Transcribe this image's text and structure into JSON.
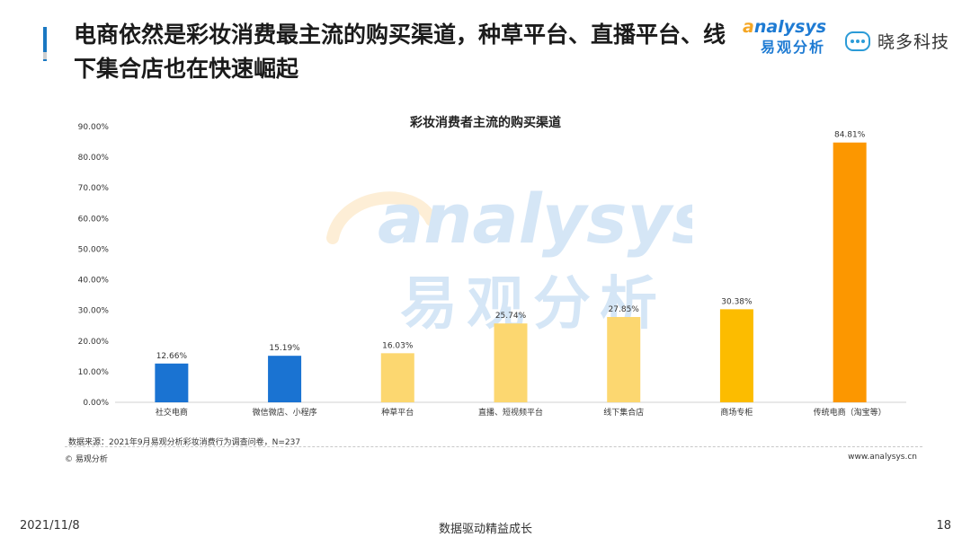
{
  "header": {
    "title": "电商依然是彩妆消费最主流的购买渠道，种草平台、直播平台、线下集合店也在快速崛起"
  },
  "logos": {
    "analysys_en": "nalysys",
    "analysys_a": "a",
    "analysys_cn": "易观分析",
    "xiaoduo": "晓多科技",
    "robot_icon": "robot-face-icon"
  },
  "watermark": {
    "en": "analysys",
    "cn": "易观分析"
  },
  "chart_data": {
    "type": "bar",
    "title": "彩妆消费者主流的购买渠道",
    "xlabel": "",
    "ylabel": "",
    "ylim": [
      0,
      90
    ],
    "yticks": [
      "0.00%",
      "10.00%",
      "20.00%",
      "30.00%",
      "40.00%",
      "50.00%",
      "60.00%",
      "70.00%",
      "80.00%",
      "90.00%"
    ],
    "categories": [
      "社交电商",
      "微信微店、小程序",
      "种草平台",
      "直播、短视频平台",
      "线下集合店",
      "商场专柜",
      "传统电商（淘宝等）"
    ],
    "values": [
      12.66,
      15.19,
      16.03,
      25.74,
      27.85,
      30.38,
      84.81
    ],
    "data_labels": [
      "12.66%",
      "15.19%",
      "16.03%",
      "25.74%",
      "27.85%",
      "30.38%",
      "84.81%"
    ],
    "bar_colors": [
      "#1a73d2",
      "#1a73d2",
      "#fcd770",
      "#fcd770",
      "#fcd770",
      "#fcbc00",
      "#fc9700"
    ],
    "grid": false,
    "legend": "none"
  },
  "source": {
    "text": "数据来源：2021年9月易观分析彩妆消费行为调查问卷，N=237"
  },
  "copyright": "© 易观分析",
  "website": "www.analysys.cn",
  "footer": {
    "date": "2021/11/8",
    "slogan": "数据驱动精益成长",
    "page": "18"
  }
}
